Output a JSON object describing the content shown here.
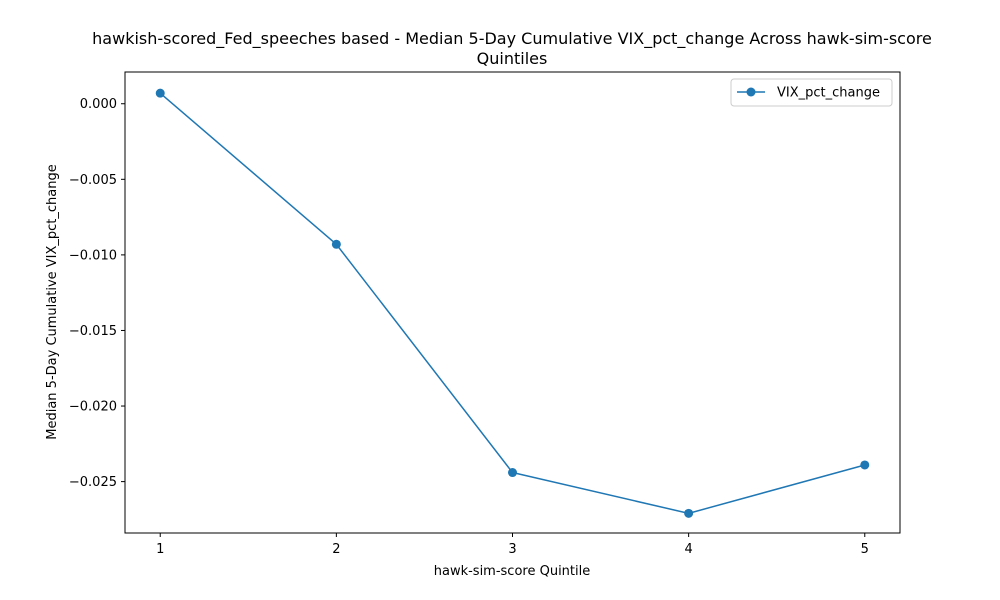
{
  "chart_data": {
    "type": "line",
    "title_line1": "hawkish-scored_Fed_speeches based - Median 5-Day Cumulative VIX_pct_change Across hawk-sim-score",
    "title_line2": "Quintiles",
    "xlabel": "hawk-sim-score Quintile",
    "ylabel": "Median 5-Day Cumulative VIX_pct_change",
    "x": [
      1,
      2,
      3,
      4,
      5
    ],
    "x_tick_labels": [
      "1",
      "2",
      "3",
      "4",
      "5"
    ],
    "y_ticks": [
      0.0,
      -0.005,
      -0.01,
      -0.015,
      -0.02,
      -0.025
    ],
    "y_tick_labels": [
      "0.000",
      "−0.005",
      "−0.010",
      "−0.015",
      "−0.020",
      "−0.025"
    ],
    "xlim": [
      0.8,
      5.2
    ],
    "ylim": [
      -0.0284,
      0.0021
    ],
    "series": [
      {
        "name": "VIX_pct_change",
        "color": "#1f77b4",
        "marker": "circle",
        "values": [
          0.0007,
          -0.0093,
          -0.0244,
          -0.0271,
          -0.0239
        ]
      }
    ],
    "legend_position": "upper right",
    "grid": false
  }
}
